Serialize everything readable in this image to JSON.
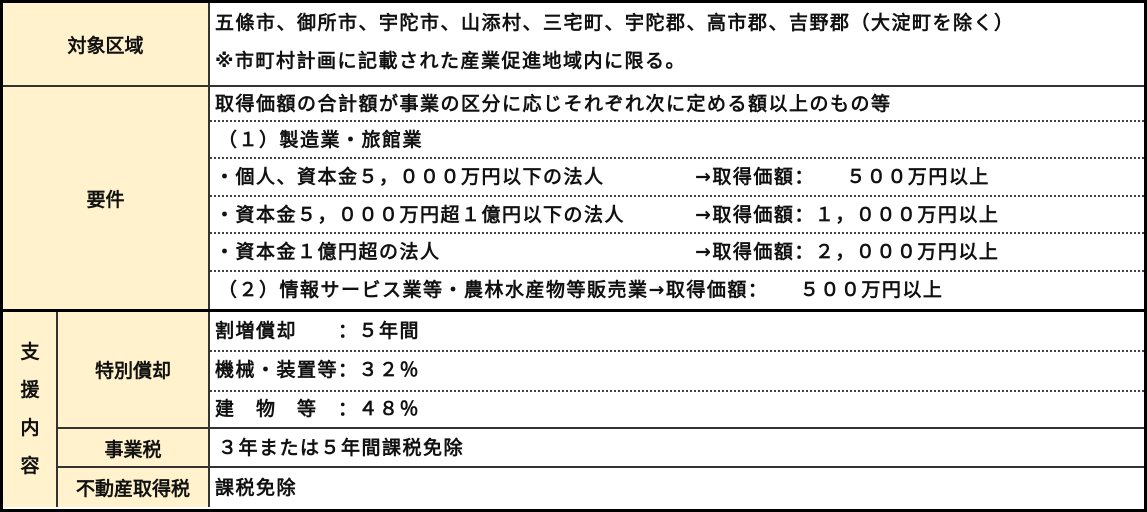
{
  "target_area": {
    "label": "対象区域",
    "lines": [
      "五條市、御所市、宇陀市、山添村、三宅町、宇陀郡、高市郡、吉野郡（大淀町を除く）",
      "※市町村計画に記載された産業促進地域内に限る。"
    ]
  },
  "requirements": {
    "label": "要件",
    "intro": "取得価額の合計額が事業の区分に応じそれぞれ次に定める額以上のもの等",
    "category1": "（１）製造業・旅館業",
    "rows": [
      {
        "who": "・個人、資本金５，０００万円以下の法人",
        "amount": "→取得価額：　　５００万円以上"
      },
      {
        "who": "・資本金５，０００万円超１億円以下の法人",
        "amount": "→取得価額：１，０００万円以上"
      },
      {
        "who": "・資本金１億円超の法人",
        "amount": "→取得価額：２，０００万円以上"
      }
    ],
    "category2": "（２）情報サービス業等・農林水産物等販売業→取得価額：　　５００万円以上"
  },
  "support": {
    "label_chars": [
      "支",
      "援",
      "内",
      "容"
    ],
    "special_depreciation": {
      "label": "特別償却",
      "lines": [
        "割増償却　　：５年間",
        "機械・装置等：３２％",
        "建　物　等　：４８％"
      ]
    },
    "business_tax": {
      "label": "事業税",
      "value": "３年または５年間課税免除"
    },
    "real_estate_tax": {
      "label": "不動産取得税",
      "value": "課税免除"
    }
  },
  "colors": {
    "header_bg": "#fff2cc",
    "border": "#000000"
  }
}
